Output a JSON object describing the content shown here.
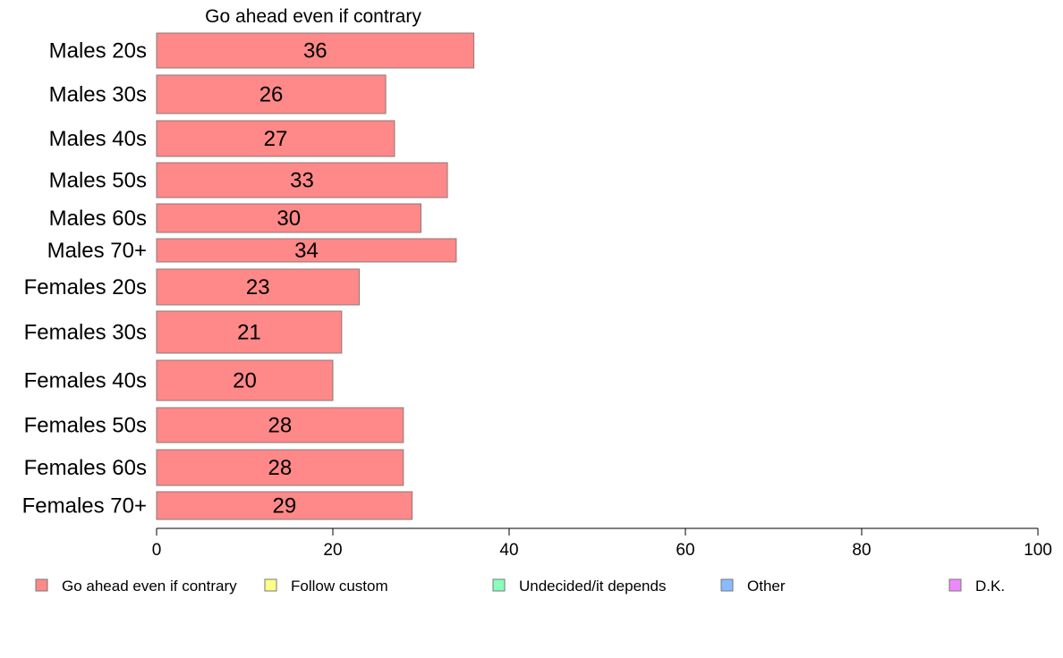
{
  "chart_data": {
    "type": "bar",
    "orientation": "horizontal",
    "title": "Go ahead even if contrary",
    "categories": [
      "Males 20s",
      "Males 30s",
      "Males 40s",
      "Males 50s",
      "Males 60s",
      "Males 70+",
      "Females 20s",
      "Females 30s",
      "Females 40s",
      "Females 50s",
      "Females 60s",
      "Females 70+"
    ],
    "values": [
      36,
      26,
      27,
      33,
      30,
      34,
      23,
      21,
      20,
      28,
      28,
      29
    ],
    "xlim": [
      0,
      100
    ],
    "xticks": [
      0,
      20,
      40,
      60,
      80,
      100
    ],
    "grid": false,
    "legend_position": "bottom",
    "legend": [
      {
        "label": "Go ahead even if contrary",
        "color": "#ff8888"
      },
      {
        "label": "Follow custom",
        "color": "#ffff88"
      },
      {
        "label": "Undecided/it depends",
        "color": "#88ffbb"
      },
      {
        "label": "Other",
        "color": "#88bbff"
      },
      {
        "label": "D.K.",
        "color": "#ee88ff"
      }
    ],
    "bar_color": "#ff8888"
  }
}
